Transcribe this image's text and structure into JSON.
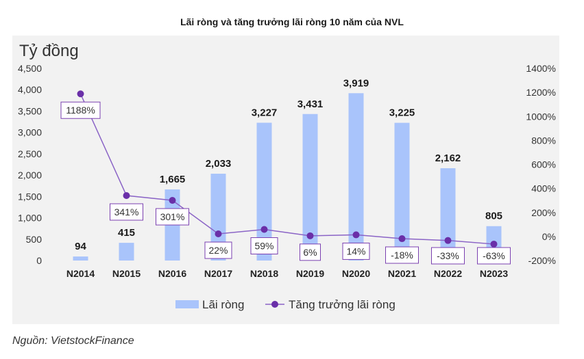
{
  "page": {
    "title": "Lãi ròng và tăng trưởng lãi ròng 10 năm của NVL",
    "source": "Nguồn: VietstockFinance"
  },
  "colors": {
    "bar": "#a9c4fb",
    "line": "#8a63c6",
    "marker": "#6a2fa8",
    "label_box": "#7a3fb0",
    "panel": "#f2f2f2"
  },
  "chart_data": {
    "type": "bar",
    "title": "Lãi ròng và tăng trưởng lãi ròng 10 năm của NVL",
    "ylabel": "Tỷ đồng",
    "categories": [
      "N2014",
      "N2015",
      "N2016",
      "N2017",
      "N2018",
      "N2019",
      "N2020",
      "N2021",
      "N2022",
      "N2023"
    ],
    "series": [
      {
        "name": "Lãi ròng",
        "type": "bar",
        "axis": "left",
        "values": [
          94,
          415,
          1665,
          2033,
          3227,
          3431,
          3919,
          3225,
          2162,
          805
        ],
        "labels": [
          "94",
          "415",
          "1,665",
          "2,033",
          "3,227",
          "3,431",
          "3,919",
          "3,225",
          "2,162",
          "805"
        ]
      },
      {
        "name": "Tăng trưởng lãi ròng",
        "type": "line",
        "axis": "right",
        "values": [
          1188,
          341,
          301,
          22,
          59,
          6,
          14,
          -18,
          -33,
          -63
        ],
        "labels": [
          "1188%",
          "341%",
          "301%",
          "22%",
          "59%",
          "6%",
          "14%",
          "-18%",
          "-33%",
          "-63%"
        ]
      }
    ],
    "y_left": {
      "min": 0,
      "max": 4500,
      "ticks": [
        "0",
        "500",
        "1,000",
        "1,500",
        "2,000",
        "2,500",
        "3,000",
        "3,500",
        "4,000",
        "4,500"
      ]
    },
    "y_right": {
      "min": -200,
      "max": 1400,
      "ticks": [
        "-200%",
        "0%",
        "200%",
        "400%",
        "600%",
        "800%",
        "1000%",
        "1200%",
        "1400%"
      ]
    },
    "grid": false,
    "legend": "bottom"
  }
}
